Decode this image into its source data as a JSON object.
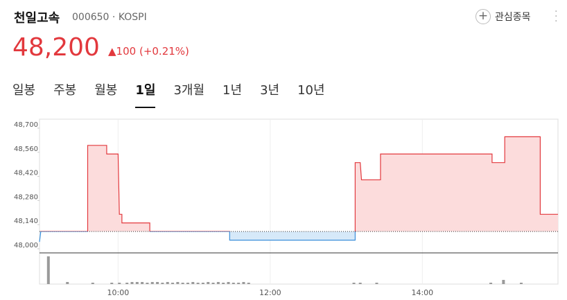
{
  "header": {
    "name": "천일고속",
    "code": "000650",
    "market": "KOSPI",
    "watch": "관심종목",
    "price": "48,200",
    "change": "100",
    "change_pct": "(+0.21%)"
  },
  "tabs": [
    "일봉",
    "주봉",
    "월봉",
    "1일",
    "3개월",
    "1년",
    "3년",
    "10년"
  ],
  "selected_tab": 3,
  "chart_data": {
    "type": "line",
    "x": [
      538,
      539,
      576,
      576,
      591,
      591,
      600,
      601,
      603,
      603,
      625,
      625,
      688,
      688,
      787,
      787,
      791,
      792,
      807,
      807,
      895,
      895,
      905,
      905,
      933,
      933,
      947
    ],
    "series": [
      {
        "name": "price",
        "color": "#e2383d",
        "values": [
          48040,
          48100,
          48100,
          48600,
          48600,
          48550,
          48550,
          48200,
          48200,
          48150,
          48150,
          48100,
          48100,
          48050,
          48050,
          48500,
          48500,
          48400,
          48400,
          48550,
          48550,
          48500,
          48500,
          48650,
          48650,
          48200,
          48200
        ]
      }
    ],
    "baseline": 48100,
    "above_fill": "#fcdcdc",
    "below_color": "#3a8fd9",
    "below_fill": "#d6e9f9",
    "xlim": [
      538,
      947
    ],
    "ylim": [
      47976,
      48752
    ],
    "xticks": [
      {
        "value": 600,
        "label": "10:00"
      },
      {
        "value": 720,
        "label": "12:00"
      },
      {
        "value": 840,
        "label": "14:00"
      }
    ],
    "yticks": [
      {
        "value": 48000,
        "label": "48,000"
      },
      {
        "value": 48140,
        "label": "48,140"
      },
      {
        "value": 48280,
        "label": "48,280"
      },
      {
        "value": 48420,
        "label": "48,420"
      },
      {
        "value": 48560,
        "label": "48,560"
      },
      {
        "value": 48700,
        "label": "48,700"
      }
    ],
    "volume": {
      "color": "#9a9a9a",
      "x": [
        545,
        560,
        580,
        595,
        601,
        607,
        611,
        615,
        619,
        623,
        627,
        631,
        635,
        639,
        643,
        647,
        651,
        655,
        659,
        663,
        667,
        671,
        675,
        679,
        683,
        687,
        691,
        695,
        699,
        703,
        786,
        791,
        804,
        894,
        904,
        918
      ],
      "values": [
        40,
        3,
        2,
        2,
        2,
        2,
        3,
        3,
        3,
        2,
        3,
        3,
        2,
        3,
        2,
        3,
        2,
        2,
        3,
        2,
        2,
        3,
        2,
        3,
        2,
        3,
        2,
        2,
        3,
        2,
        2,
        2,
        2,
        2,
        6,
        2
      ]
    }
  }
}
